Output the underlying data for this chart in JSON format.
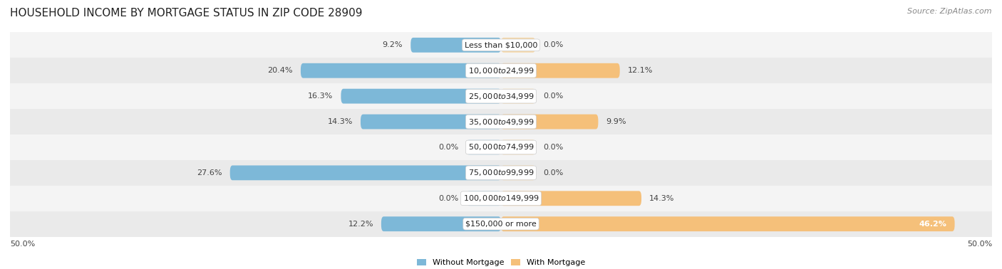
{
  "title": "HOUSEHOLD INCOME BY MORTGAGE STATUS IN ZIP CODE 28909",
  "source": "Source: ZipAtlas.com",
  "categories": [
    "Less than $10,000",
    "$10,000 to $24,999",
    "$25,000 to $34,999",
    "$35,000 to $49,999",
    "$50,000 to $74,999",
    "$75,000 to $99,999",
    "$100,000 to $149,999",
    "$150,000 or more"
  ],
  "without_mortgage": [
    9.2,
    20.4,
    16.3,
    14.3,
    0.0,
    27.6,
    0.0,
    12.2
  ],
  "with_mortgage": [
    0.0,
    12.1,
    0.0,
    9.9,
    0.0,
    0.0,
    14.3,
    46.2
  ],
  "color_without": "#7db8d8",
  "color_with": "#f5c07a",
  "color_without_zero": "#b8d8ea",
  "color_with_zero": "#f5d8aa",
  "xlim": 50.0,
  "axis_label_left": "50.0%",
  "axis_label_right": "50.0%",
  "legend_without": "Without Mortgage",
  "legend_with": "With Mortgage",
  "title_fontsize": 11,
  "source_fontsize": 8,
  "label_fontsize": 8,
  "category_fontsize": 8,
  "bar_height": 0.58,
  "zero_bar_width": 3.5,
  "row_colors": [
    "#f4f4f4",
    "#eaeaea"
  ]
}
